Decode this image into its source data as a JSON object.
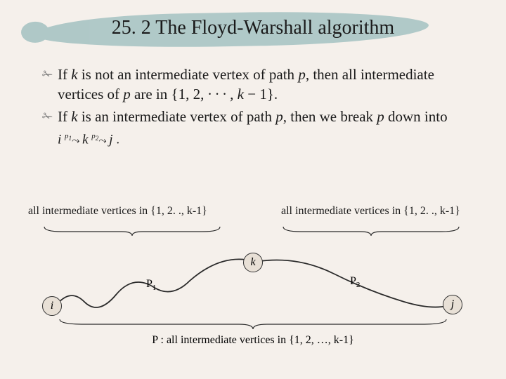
{
  "title": "25. 2 The Floyd-Warshall algorithm",
  "bullet1_html": "If <i>k</i> is not an intermediate vertex of path <i>p</i>, then all intermediate vertices of <i>p</i> are in {1<i>,</i> 2<i>, · · · , k</i> − 1}.",
  "bullet2_html": "If <i>k</i> is an intermediate vertex of path <i>p</i>, then we break <i>p</i> down into",
  "path_diagram_html": "<i>i</i> <sup>p<sub>1</sub></sup><span class=\"wiggle\">⤳</span> <i>k</i> <sup>p<sub>2</sub></sup><span class=\"wiggle\">⤳</span> <i>j</i> .",
  "label_left": "all intermediate vertices in {1, 2. ., k-1}",
  "label_right": "all intermediate vertices in {1, 2. ., k-1}",
  "node_k": "k",
  "node_i": "i",
  "node_j": "j",
  "p1_html": "P<sub>1</sub>",
  "p2_html": "P<sub>2</sub>",
  "bottom_label": "P : all intermediate vertices in {1, 2, …, k-1}",
  "colors": {
    "background": "#f5f0eb",
    "brush": "#a8c4c4",
    "text": "#1a1a1a",
    "node_fill": "#e8e0d6",
    "node_border": "#333333",
    "curve": "#2a2a2a"
  }
}
